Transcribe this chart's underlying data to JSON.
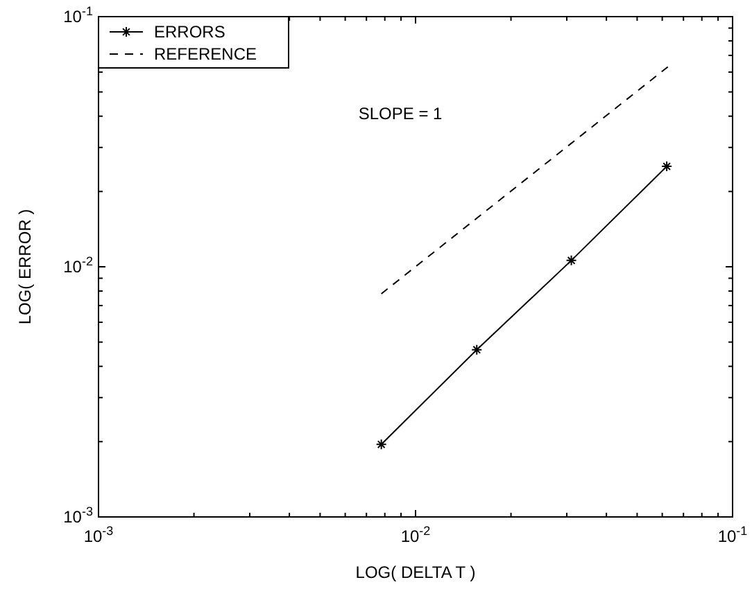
{
  "chart_data": {
    "type": "line",
    "xlabel": "LOG( DELTA T )",
    "ylabel": "LOG( ERROR )",
    "log": "xy",
    "grid": false,
    "legend": "top left",
    "xlim": [
      0.001,
      0.1
    ],
    "ylim": [
      0.001,
      0.1
    ],
    "xticks": [
      {
        "value": 0.001,
        "label": "10$^{-3}$"
      },
      {
        "value": 0.002,
        "label": null
      },
      {
        "value": 0.003,
        "label": null
      },
      {
        "value": 0.004,
        "label": null
      },
      {
        "value": 0.005,
        "label": null
      },
      {
        "value": 0.006,
        "label": null
      },
      {
        "value": 0.007,
        "label": null
      },
      {
        "value": 0.008,
        "label": null
      },
      {
        "value": 0.009,
        "label": null
      },
      {
        "value": 0.01,
        "label": "10$^{-2}$"
      },
      {
        "value": 0.02,
        "label": null
      },
      {
        "value": 0.03,
        "label": null
      },
      {
        "value": 0.04,
        "label": null
      },
      {
        "value": 0.05,
        "label": null
      },
      {
        "value": 0.06,
        "label": null
      },
      {
        "value": 0.07,
        "label": null
      },
      {
        "value": 0.08,
        "label": null
      },
      {
        "value": 0.09,
        "label": null
      },
      {
        "value": 0.1,
        "label": "10$^{-1}$"
      }
    ],
    "yticks": [
      {
        "value": 0.001,
        "label": "10$^{-3}$"
      },
      {
        "value": 0.002,
        "label": null
      },
      {
        "value": 0.003,
        "label": null
      },
      {
        "value": 0.004,
        "label": null
      },
      {
        "value": 0.005,
        "label": null
      },
      {
        "value": 0.006,
        "label": null
      },
      {
        "value": 0.007,
        "label": null
      },
      {
        "value": 0.008,
        "label": null
      },
      {
        "value": 0.009,
        "label": null
      },
      {
        "value": 0.01,
        "label": "10$^{-2}$"
      },
      {
        "value": 0.02,
        "label": null
      },
      {
        "value": 0.03,
        "label": null
      },
      {
        "value": 0.04,
        "label": null
      },
      {
        "value": 0.05,
        "label": null
      },
      {
        "value": 0.06,
        "label": null
      },
      {
        "value": 0.07,
        "label": null
      },
      {
        "value": 0.08,
        "label": null
      },
      {
        "value": 0.09,
        "label": null
      },
      {
        "value": 0.1,
        "label": "10$^{-1}$"
      }
    ],
    "series": [
      {
        "name": "ERRORS",
        "color": "#000000",
        "x": [
          0.0078,
          0.0156,
          0.031,
          0.062
        ],
        "values": [
          0.00195,
          0.00466,
          0.0106,
          0.0252
        ],
        "marker": "cross",
        "line_style": "solid"
      },
      {
        "name": "REFERENCE",
        "color": "#000000",
        "x": [
          0.0078,
          0.0625
        ],
        "values": [
          0.0078,
          0.063
        ],
        "marker": "none",
        "line_style": "dashed"
      }
    ],
    "annotations": [
      "SLOPE = 1"
    ]
  }
}
